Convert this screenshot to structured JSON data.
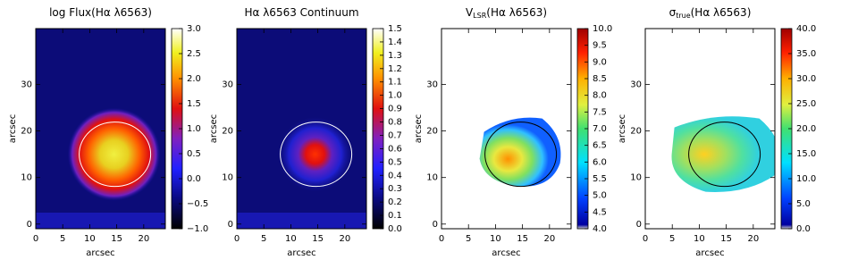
{
  "chart_data": [
    {
      "type": "heatmap",
      "title": [
        "log Flux(Hα λ6563)"
      ],
      "xlabel": "arcsec",
      "ylabel": "arcsec",
      "xlim": [
        0,
        24
      ],
      "ylim": [
        -1,
        42
      ],
      "xticks": [
        0,
        5,
        10,
        15,
        20
      ],
      "yticks": [
        0,
        10,
        20,
        30
      ],
      "colorbar": {
        "lim": [
          -1,
          3
        ],
        "ticks": [
          {
            "value": -1,
            "label": "−1.0"
          },
          {
            "value": -0.5,
            "label": "−0.5"
          },
          {
            "value": 0,
            "label": "0.0"
          },
          0.5,
          {
            "value": 1,
            "label": "1.0"
          },
          1.5,
          {
            "value": 2,
            "label": "2.0"
          },
          2.5,
          {
            "value": 3,
            "label": "3.0"
          }
        ]
      }
    },
    {
      "type": "heatmap",
      "title": [
        "Hα λ6563 Continuum"
      ],
      "xlabel": "arcsec",
      "ylabel": "arcsec",
      "xlim": [
        0,
        24
      ],
      "ylim": [
        -1,
        42
      ],
      "xticks": [
        0,
        5,
        10,
        15,
        20
      ],
      "yticks": [
        0,
        10,
        20,
        30
      ],
      "colorbar": {
        "lim": [
          0,
          1.5
        ],
        "ticks": [
          {
            "value": 0,
            "label": "0.0"
          },
          0.1,
          0.2,
          0.3,
          0.4,
          0.5,
          0.6,
          0.7,
          0.8,
          0.9,
          {
            "value": 1,
            "label": "1.0"
          },
          1.1,
          1.2,
          1.3,
          1.4,
          1.5
        ]
      }
    },
    {
      "type": "heatmap",
      "title": [
        "V",
        "LSR",
        "(Hα λ6563)"
      ],
      "xlabel": "arcsec",
      "ylabel": "arcsec",
      "xlim": [
        0,
        24
      ],
      "ylim": [
        -1,
        42
      ],
      "xticks": [
        0,
        5,
        10,
        15,
        20
      ],
      "yticks": [
        0,
        10,
        20,
        30
      ],
      "colorbar": {
        "lim": [
          4,
          10
        ],
        "ticks": [
          {
            "value": 4,
            "label": "4.0"
          },
          4.5,
          {
            "value": 5,
            "label": "5.0"
          },
          5.5,
          {
            "value": 6,
            "label": "6.0"
          },
          6.5,
          {
            "value": 7,
            "label": "7.0"
          },
          7.5,
          {
            "value": 8,
            "label": "8.0"
          },
          8.5,
          {
            "value": 9,
            "label": "9.0"
          },
          9.5,
          {
            "value": 10,
            "label": "10.0"
          }
        ]
      }
    },
    {
      "type": "heatmap",
      "title": [
        "σ",
        "true",
        "(Hα λ6563)"
      ],
      "xlabel": "arcsec",
      "ylabel": "arcsec",
      "xlim": [
        0,
        24
      ],
      "ylim": [
        -1,
        42
      ],
      "xticks": [
        0,
        5,
        10,
        15,
        20
      ],
      "yticks": [
        0,
        10,
        20,
        30
      ],
      "colorbar": {
        "lim": [
          0,
          40
        ],
        "ticks": [
          {
            "value": 0,
            "label": "0.0"
          },
          {
            "value": 5,
            "label": "5.0"
          },
          {
            "value": 10,
            "label": "10.0"
          },
          {
            "value": 15,
            "label": "15.0"
          },
          {
            "value": 20,
            "label": "20.0"
          },
          {
            "value": 25,
            "label": "25.0"
          },
          {
            "value": 30,
            "label": "30.0"
          },
          {
            "value": 35,
            "label": "35.0"
          },
          {
            "value": 40,
            "label": "40.0"
          }
        ]
      }
    }
  ]
}
